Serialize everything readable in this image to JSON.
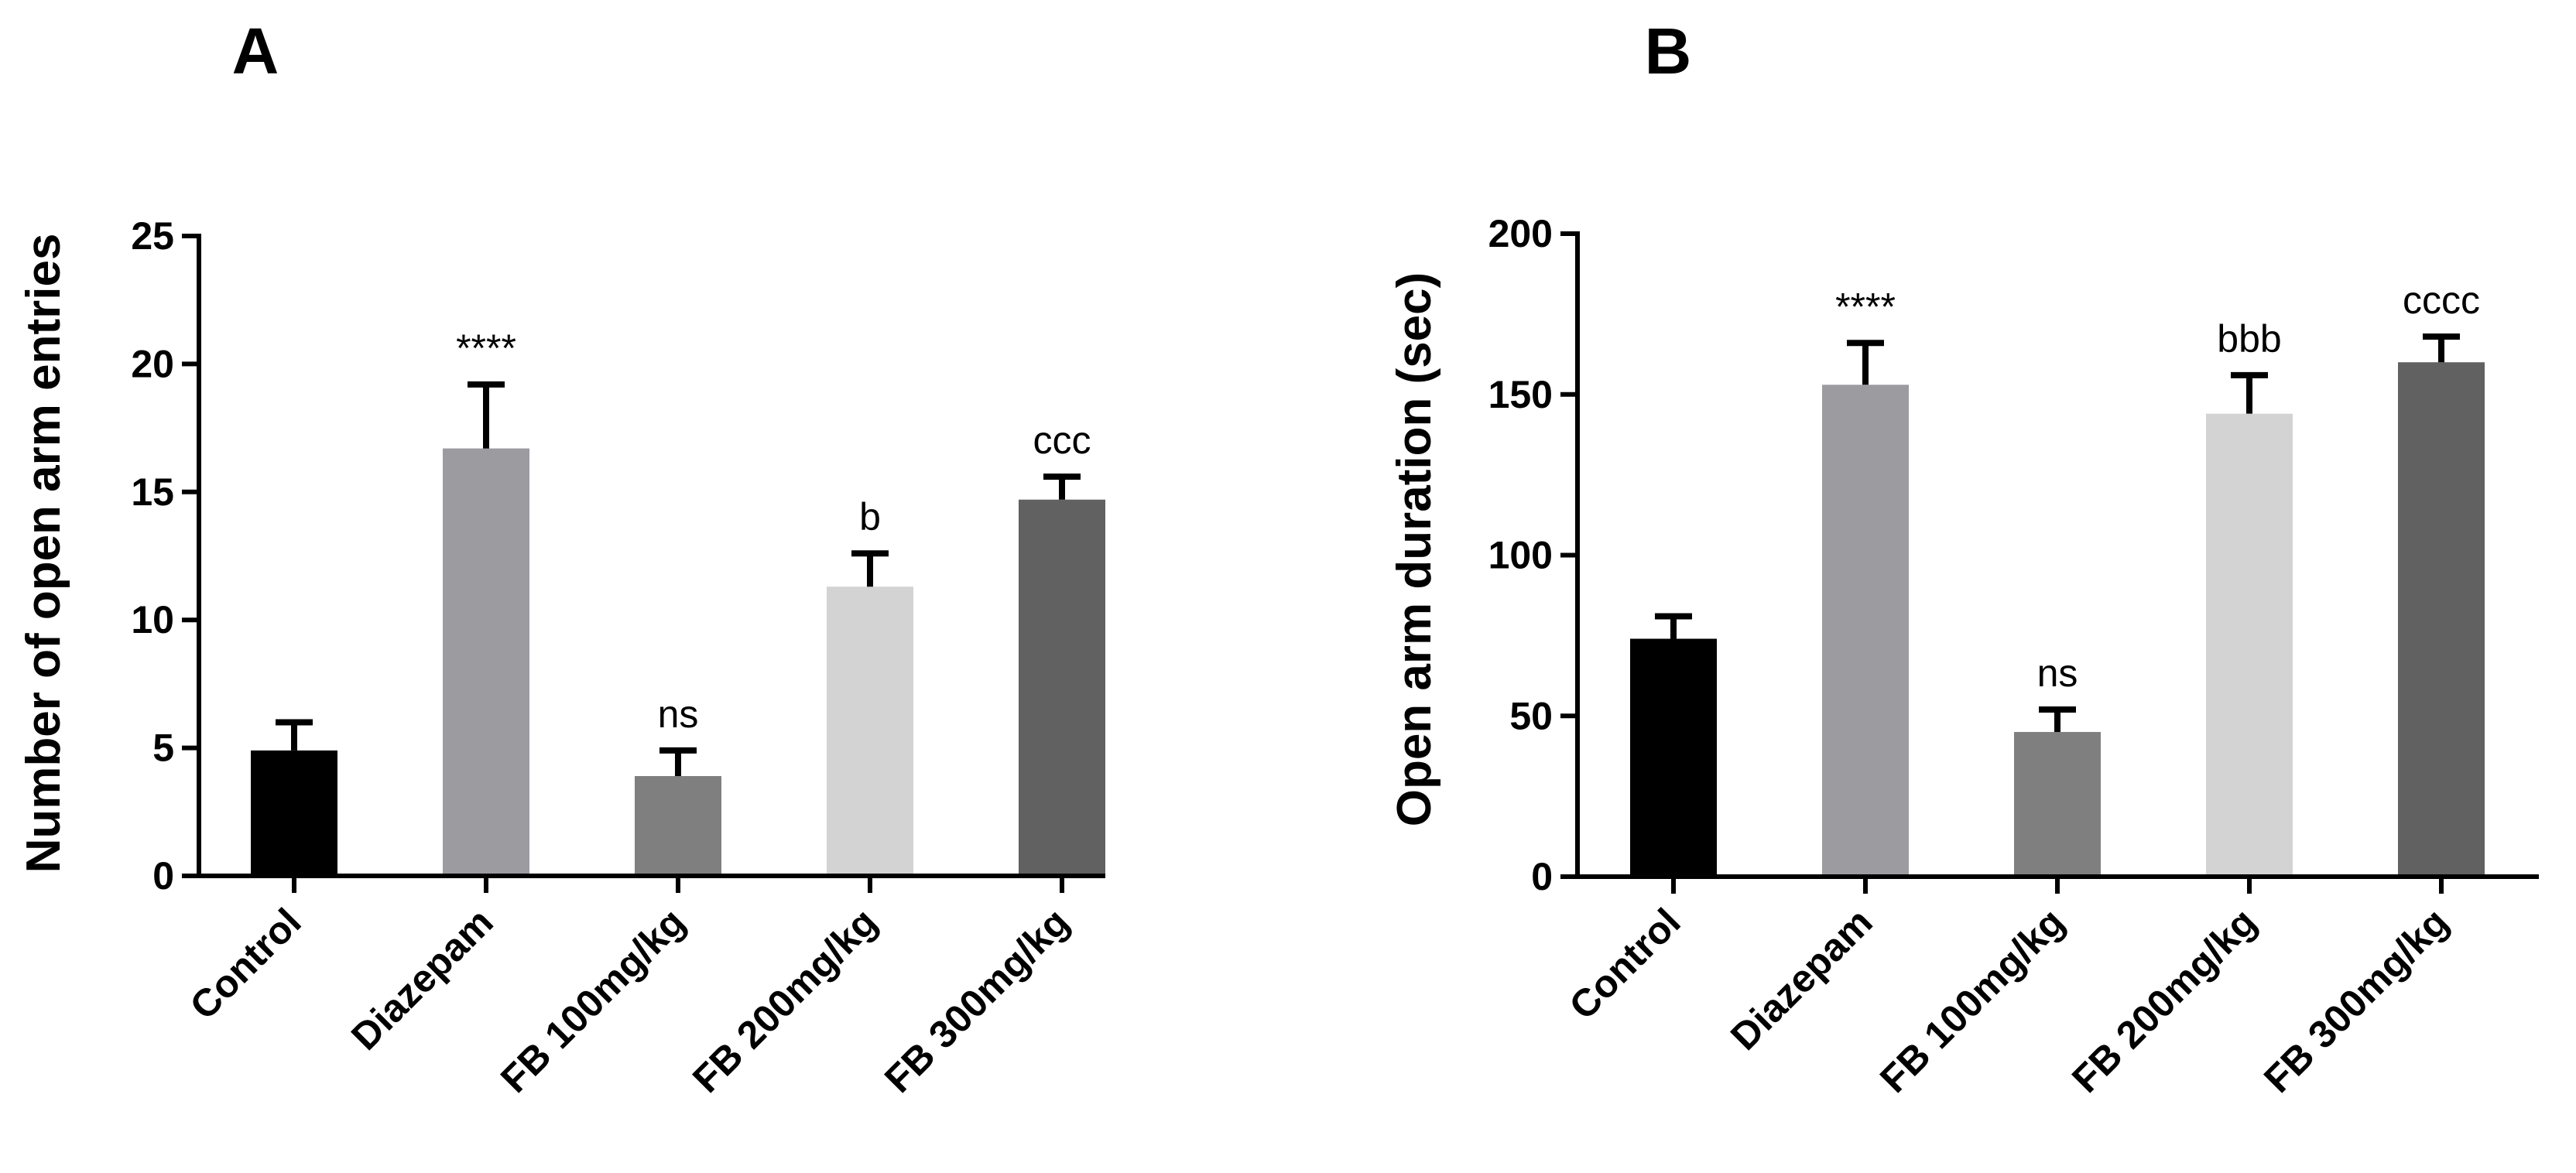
{
  "chart_data": [
    {
      "type": "bar",
      "panel_label": "A",
      "title": "",
      "xlabel": "",
      "ylabel": "Number of open arm entries",
      "ylim": [
        0,
        25
      ],
      "yticks": [
        "0",
        "5",
        "10",
        "15",
        "20",
        "25"
      ],
      "categories": [
        "Control",
        "Diazepam",
        "FB 100mg/kg",
        "FB 200mg/kg",
        "FB 300mg/kg"
      ],
      "values": [
        4.9,
        16.7,
        3.9,
        11.3,
        14.7
      ],
      "errors": [
        1.1,
        2.5,
        1.0,
        1.3,
        0.9
      ],
      "annotations": [
        "",
        "****",
        "ns",
        "b",
        "ccc"
      ],
      "colors": [
        "#000000",
        "#9b9ba0",
        "#7f7f7f",
        "#d3d3d3",
        "#616161"
      ]
    },
    {
      "type": "bar",
      "panel_label": "B",
      "title": "",
      "xlabel": "",
      "ylabel": "Open arm duration (sec)",
      "ylim": [
        0,
        200
      ],
      "yticks": [
        "0",
        "50",
        "100",
        "150",
        "200"
      ],
      "categories": [
        "Control",
        "Diazepam",
        "FB 100mg/kg",
        "FB 200mg/kg",
        "FB 300mg/kg"
      ],
      "values": [
        74,
        153,
        45,
        144,
        160
      ],
      "errors": [
        7,
        13,
        7,
        12,
        8
      ],
      "annotations": [
        "",
        "****",
        "ns",
        "bbb",
        "cccc"
      ],
      "colors": [
        "#000000",
        "#9b9ba0",
        "#7f7f7f",
        "#d3d3d3",
        "#616161"
      ]
    }
  ]
}
